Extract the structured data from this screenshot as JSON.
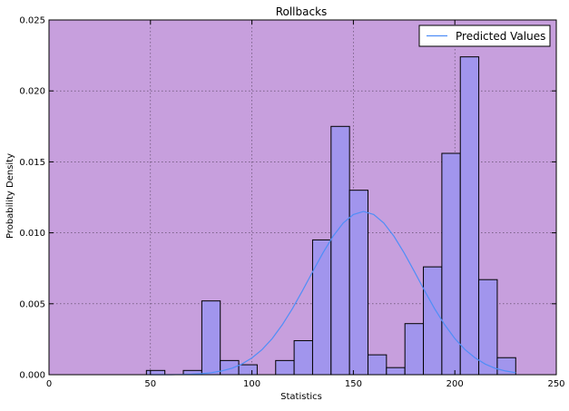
{
  "chart_data": {
    "type": "bar",
    "title": "Rollbacks",
    "xlabel": "Statistics",
    "ylabel": "Probability Density",
    "xlim": [
      0,
      250
    ],
    "ylim": [
      0,
      0.025
    ],
    "xticks": [
      0,
      50,
      100,
      150,
      200,
      250
    ],
    "yticks": [
      0.0,
      0.005,
      0.01,
      0.015,
      0.02,
      0.025
    ],
    "xtick_labels": [
      "0",
      "50",
      "100",
      "150",
      "200",
      "250"
    ],
    "ytick_labels": [
      "0.000",
      "0.005",
      "0.010",
      "0.015",
      "0.020",
      "0.025"
    ],
    "grid": true,
    "legend_position": "top-right",
    "background_color": "#c79fdd",
    "bar_color": "#a195ed",
    "line_color": "#4f8ef7",
    "histogram": {
      "bins": [
        {
          "x0": 48.0,
          "x1": 57.1,
          "value": 0.0003
        },
        {
          "x0": 57.1,
          "x1": 66.2,
          "value": 0.0
        },
        {
          "x0": 66.2,
          "x1": 75.3,
          "value": 0.0003
        },
        {
          "x0": 75.3,
          "x1": 84.4,
          "value": 0.0052
        },
        {
          "x0": 84.4,
          "x1": 93.5,
          "value": 0.001
        },
        {
          "x0": 93.5,
          "x1": 102.6,
          "value": 0.0007
        },
        {
          "x0": 102.6,
          "x1": 111.7,
          "value": 0.0
        },
        {
          "x0": 111.7,
          "x1": 120.8,
          "value": 0.001
        },
        {
          "x0": 120.8,
          "x1": 129.9,
          "value": 0.0024
        },
        {
          "x0": 129.9,
          "x1": 139.0,
          "value": 0.0095
        },
        {
          "x0": 139.0,
          "x1": 148.1,
          "value": 0.0175
        },
        {
          "x0": 148.1,
          "x1": 157.2,
          "value": 0.013
        },
        {
          "x0": 157.2,
          "x1": 166.3,
          "value": 0.0014
        },
        {
          "x0": 166.3,
          "x1": 175.4,
          "value": 0.0005
        },
        {
          "x0": 175.4,
          "x1": 184.5,
          "value": 0.0036
        },
        {
          "x0": 184.5,
          "x1": 193.6,
          "value": 0.0076
        },
        {
          "x0": 193.6,
          "x1": 202.7,
          "value": 0.0156
        },
        {
          "x0": 202.7,
          "x1": 211.8,
          "value": 0.0224
        },
        {
          "x0": 211.8,
          "x1": 220.9,
          "value": 0.0067
        },
        {
          "x0": 220.9,
          "x1": 230.0,
          "value": 0.0012
        }
      ]
    },
    "series": [
      {
        "name": "Predicted Values",
        "type": "line",
        "x": [
          50,
          55,
          60,
          65,
          70,
          75,
          80,
          85,
          90,
          95,
          100,
          105,
          110,
          115,
          120,
          125,
          130,
          135,
          140,
          145,
          150,
          155,
          160,
          165,
          170,
          175,
          180,
          185,
          190,
          195,
          200,
          205,
          210,
          215,
          220,
          225,
          230
        ],
        "y": [
          0.0,
          0.0,
          0.0,
          1e-05,
          3e-05,
          7e-05,
          0.00014,
          0.00026,
          0.00045,
          0.00075,
          0.00118,
          0.00177,
          0.00255,
          0.00352,
          0.00466,
          0.00594,
          0.00728,
          0.00859,
          0.00976,
          0.01069,
          0.01129,
          0.0115,
          0.01129,
          0.01069,
          0.00976,
          0.00859,
          0.00728,
          0.00594,
          0.00466,
          0.00352,
          0.00255,
          0.00177,
          0.00118,
          0.00075,
          0.00045,
          0.00026,
          0.00014
        ]
      }
    ]
  }
}
